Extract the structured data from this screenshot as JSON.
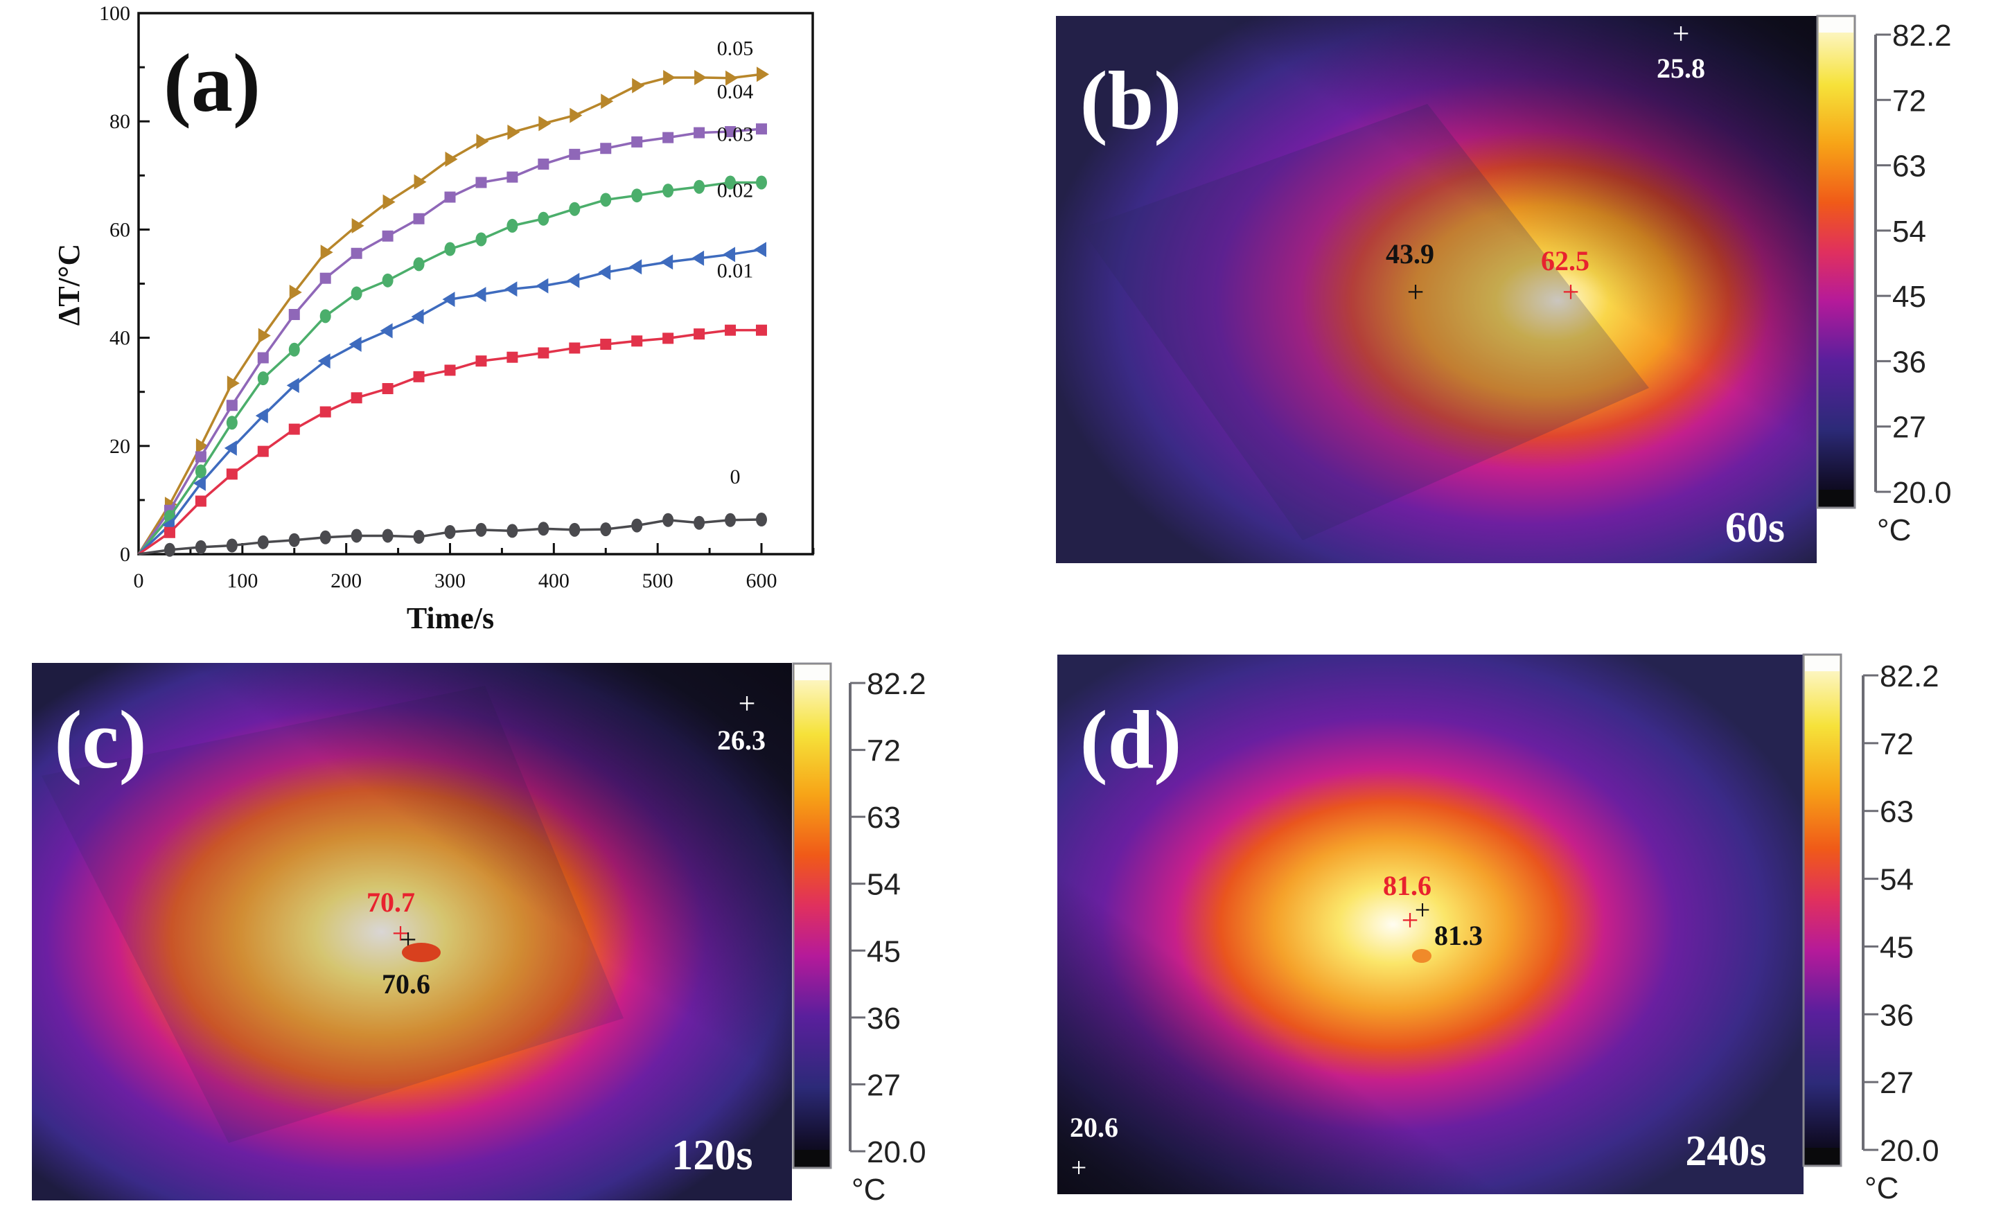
{
  "figure": {
    "panels": [
      {
        "id": "a",
        "label": "(a)"
      },
      {
        "id": "b",
        "label": "(b)"
      },
      {
        "id": "c",
        "label": "(c)"
      },
      {
        "id": "d",
        "label": "(d)"
      }
    ]
  },
  "chart_data": {
    "type": "line",
    "title": "",
    "panel_label": "(a)",
    "xlabel": "Time/s",
    "ylabel": "ΔT/°C",
    "xlim": [
      0,
      650
    ],
    "ylim": [
      0,
      100
    ],
    "xticks": [
      0,
      100,
      200,
      300,
      400,
      500,
      600
    ],
    "yticks": [
      0,
      20,
      40,
      60,
      80,
      100
    ],
    "grid": false,
    "legend": "inline labels at right end of each series",
    "x": [
      0,
      30,
      60,
      90,
      120,
      150,
      180,
      210,
      240,
      270,
      300,
      330,
      360,
      390,
      420,
      450,
      480,
      510,
      540,
      570,
      600
    ],
    "series": [
      {
        "name": "0.05",
        "color": "#B8862A",
        "marker": "triangle-right",
        "values": [
          0,
          9.2,
          20.0,
          31.6,
          40.4,
          48.4,
          55.8,
          60.7,
          65.1,
          68.8,
          73.0,
          76.3,
          78.0,
          79.6,
          81.1,
          83.7,
          86.6,
          88.1,
          88.1,
          88.0,
          88.7
        ]
      },
      {
        "name": "0.04",
        "color": "#8F67B8",
        "marker": "square",
        "values": [
          0,
          8.1,
          18.0,
          27.5,
          36.3,
          44.3,
          51.0,
          55.6,
          58.8,
          62.0,
          66.0,
          68.7,
          69.7,
          72.1,
          73.9,
          75.0,
          76.2,
          77.0,
          77.9,
          78.1,
          78.6
        ]
      },
      {
        "name": "0.03",
        "color": "#4BAE6B",
        "marker": "circle",
        "values": [
          0,
          6.9,
          15.3,
          24.3,
          32.5,
          37.8,
          44.0,
          48.2,
          50.6,
          53.6,
          56.4,
          58.2,
          60.7,
          62.0,
          63.8,
          65.5,
          66.3,
          67.2,
          67.9,
          68.7,
          68.7
        ]
      },
      {
        "name": "0.02",
        "color": "#3E6BBE",
        "marker": "triangle-left",
        "values": [
          0,
          5.4,
          13.1,
          19.6,
          25.6,
          31.2,
          35.7,
          38.8,
          41.3,
          43.9,
          47.1,
          48.0,
          49.0,
          49.6,
          50.6,
          52.1,
          53.1,
          54.0,
          54.7,
          55.4,
          56.3
        ]
      },
      {
        "name": "0.01",
        "color": "#E2324A",
        "marker": "square",
        "values": [
          0,
          4.0,
          9.8,
          14.8,
          19.0,
          23.1,
          26.3,
          28.9,
          30.6,
          32.8,
          34.0,
          35.7,
          36.4,
          37.2,
          38.1,
          38.8,
          39.4,
          39.9,
          40.7,
          41.4,
          41.4
        ]
      },
      {
        "name": "0",
        "color": "#4A4A4E",
        "marker": "circle",
        "values": [
          0,
          0.8,
          1.3,
          1.6,
          2.2,
          2.6,
          3.1,
          3.4,
          3.4,
          3.2,
          4.1,
          4.5,
          4.3,
          4.7,
          4.5,
          4.6,
          5.3,
          6.3,
          5.8,
          6.3,
          6.4
        ]
      }
    ]
  },
  "thermal": {
    "colorbar": {
      "unit": "°C",
      "ticks": [
        "82.2",
        "72",
        "63",
        "54",
        "45",
        "36",
        "27",
        "20.0"
      ],
      "min": 20.0,
      "max": 82.2
    },
    "images": [
      {
        "id": "b",
        "label": "(b)",
        "time": "60s",
        "points": [
          {
            "value": "25.8",
            "color": "#ffffff"
          },
          {
            "value": "43.9",
            "color": "#111111"
          },
          {
            "value": "62.5",
            "color": "#E8222E"
          }
        ]
      },
      {
        "id": "c",
        "label": "(c)",
        "time": "120s",
        "points": [
          {
            "value": "26.3",
            "color": "#ffffff"
          },
          {
            "value": "70.7",
            "color": "#E8222E"
          },
          {
            "value": "70.6",
            "color": "#111111"
          }
        ]
      },
      {
        "id": "d",
        "label": "(d)",
        "time": "240s",
        "points": [
          {
            "value": "81.6",
            "color": "#E8222E"
          },
          {
            "value": "81.3",
            "color": "#111111"
          },
          {
            "value": "20.6",
            "color": "#ffffff"
          }
        ]
      }
    ]
  }
}
